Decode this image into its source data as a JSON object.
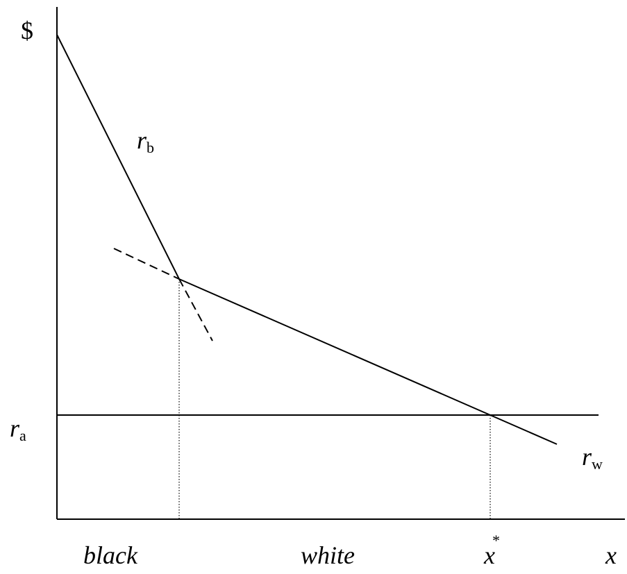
{
  "diagram": {
    "y_axis_label": "$",
    "x_axis_label": "x",
    "curves": {
      "rb": {
        "main": "r",
        "sub": "b"
      },
      "rw": {
        "main": "r",
        "sub": "w"
      },
      "ra": {
        "main": "r",
        "sub": "a"
      }
    },
    "x_star": {
      "main": "x",
      "sup": "*"
    },
    "regions": {
      "black": "black",
      "white": "white"
    },
    "colors": {
      "line": "#000000",
      "background": "#ffffff"
    }
  }
}
